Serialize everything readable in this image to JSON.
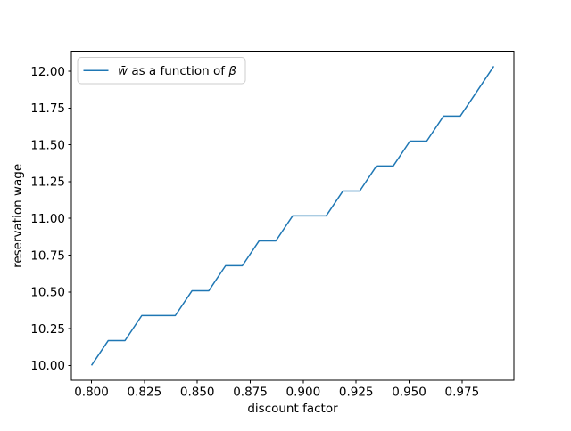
{
  "figure": {
    "background": "#ffffff"
  },
  "chart_data": {
    "type": "line",
    "title": "",
    "xlabel": "discount factor",
    "ylabel": "reservation wage",
    "grid": false,
    "xlim": [
      0.7905,
      0.9995
    ],
    "ylim": [
      9.898,
      12.136
    ],
    "x": [
      0.8,
      0.80792,
      0.81583,
      0.82375,
      0.83167,
      0.83958,
      0.8475,
      0.85542,
      0.86333,
      0.87125,
      0.87917,
      0.88708,
      0.895,
      0.90292,
      0.91083,
      0.91875,
      0.92667,
      0.93458,
      0.9425,
      0.95042,
      0.95833,
      0.96625,
      0.97417,
      0.98208,
      0.99
    ],
    "series": [
      {
        "name": "w̄ as a function of β",
        "color": "#1f77b4",
        "values": [
          10.0,
          10.169,
          10.169,
          10.339,
          10.339,
          10.339,
          10.508,
          10.508,
          10.678,
          10.678,
          10.847,
          10.847,
          11.017,
          11.017,
          11.017,
          11.186,
          11.186,
          11.356,
          11.356,
          11.525,
          11.525,
          11.695,
          11.695,
          11.864,
          12.034
        ]
      }
    ],
    "xticks": {
      "values": [
        0.8,
        0.825,
        0.85,
        0.875,
        0.9,
        0.925,
        0.95,
        0.975
      ],
      "labels": [
        "0.800",
        "0.825",
        "0.850",
        "0.875",
        "0.900",
        "0.925",
        "0.950",
        "0.975"
      ]
    },
    "yticks": {
      "values": [
        10.0,
        10.25,
        10.5,
        10.75,
        11.0,
        11.25,
        11.5,
        11.75,
        12.0
      ],
      "labels": [
        "10.00",
        "10.25",
        "10.50",
        "10.75",
        "11.00",
        "11.25",
        "11.50",
        "11.75",
        "12.00"
      ]
    },
    "legend": {
      "location": "upper left",
      "border_color": "#cccccc",
      "face_color": "#ffffff",
      "entries": [
        {
          "color": "#1f77b4",
          "parts": [
            {
              "text": "w̄",
              "italic": true
            },
            {
              "text": " as a function of ",
              "italic": false
            },
            {
              "text": "β",
              "italic": true
            }
          ]
        }
      ]
    },
    "axis_color": "#000000",
    "text_color": "#000000"
  }
}
